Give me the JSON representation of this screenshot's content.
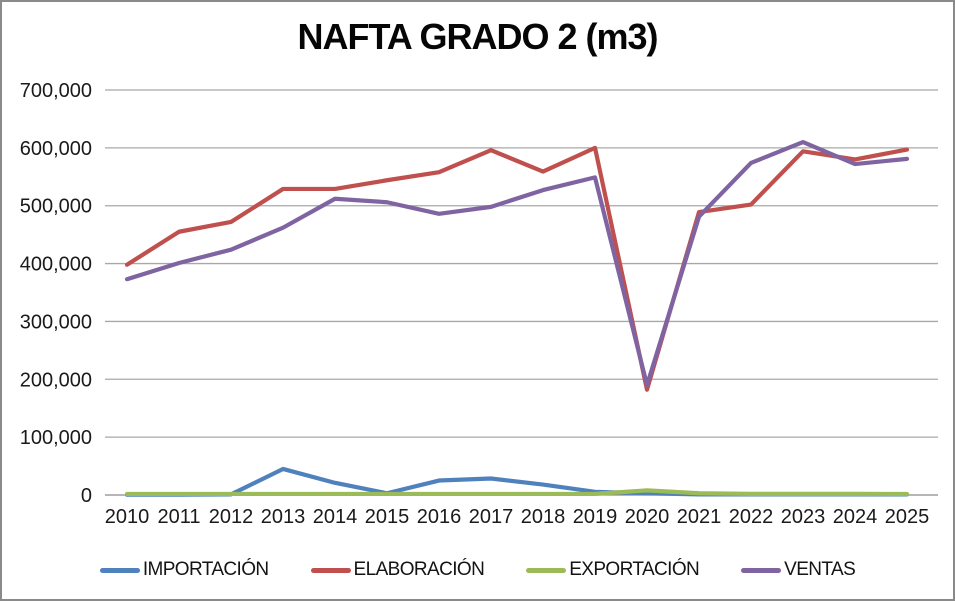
{
  "title": "NAFTA GRADO 2 (m3)",
  "chart_data": {
    "type": "line",
    "title": "NAFTA GRADO 2 (m3)",
    "xlabel": "",
    "ylabel": "",
    "ylim": [
      0,
      700000
    ],
    "y_tick_interval": 100000,
    "y_tick_labels": [
      "0",
      "100,000",
      "200,000",
      "300,000",
      "400,000",
      "500,000",
      "600,000",
      "700,000"
    ],
    "grid": true,
    "legend_position": "bottom",
    "categories": [
      "2010",
      "2011",
      "2012",
      "2013",
      "2014",
      "2015",
      "2016",
      "2017",
      "2018",
      "2019",
      "2020",
      "2021",
      "2022",
      "2023",
      "2024",
      "2025"
    ],
    "series": [
      {
        "id": "importacion",
        "name": "IMPORTACIÓN",
        "color": "#4F81BD",
        "values": [
          500,
          500,
          1000,
          45000,
          21000,
          3000,
          25000,
          28500,
          18000,
          5500,
          3000,
          1000,
          1000,
          1000,
          1000,
          1000
        ]
      },
      {
        "id": "elaboracion",
        "name": "ELABORACIÓN",
        "color": "#C0504D",
        "values": [
          398000,
          455000,
          472000,
          529000,
          529000,
          544000,
          558000,
          596000,
          559000,
          600000,
          182000,
          489000,
          502000,
          594000,
          580000,
          597000
        ]
      },
      {
        "id": "exportacion",
        "name": "EXPORTACIÓN",
        "color": "#9BBB59",
        "values": [
          1800,
          1800,
          1800,
          1800,
          1800,
          1800,
          1800,
          1800,
          1800,
          2000,
          8000,
          3000,
          2000,
          2000,
          2000,
          1800
        ]
      },
      {
        "id": "ventas",
        "name": "VENTAS",
        "color": "#8064A2",
        "values": [
          373000,
          401000,
          424000,
          462000,
          512000,
          506000,
          486000,
          498000,
          527000,
          549000,
          190000,
          481000,
          574000,
          610000,
          572000,
          581000
        ]
      }
    ]
  },
  "colors": {
    "background": "#ffffff",
    "border": "#8a8a8a",
    "gridline": "#a8a8a8",
    "axis_line": "#8a8a8a",
    "title_text": "#060606",
    "tick_label_text": "#1a1a1a"
  }
}
